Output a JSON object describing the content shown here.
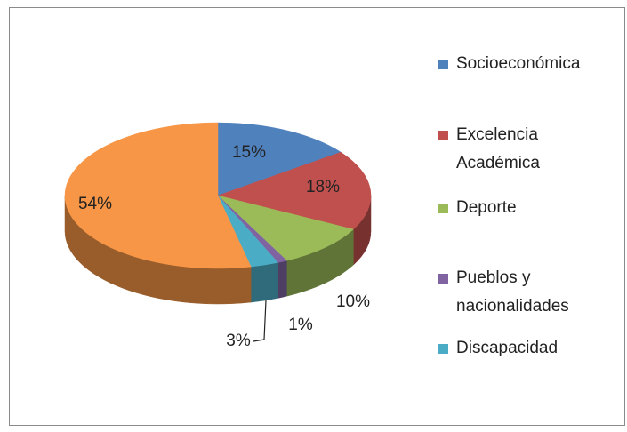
{
  "chart_data": {
    "type": "pie",
    "categories": [
      "Socioeconómica",
      "Excelencia Académica",
      "Deporte",
      "Pueblos y nacionalidades",
      "Discapacidad",
      null
    ],
    "values": [
      15,
      18,
      10,
      1,
      3,
      54
    ],
    "value_labels": [
      "15%",
      "18%",
      "10%",
      "1%",
      "3%",
      "54%"
    ],
    "colors": [
      "#4f81bd",
      "#c0504d",
      "#9bbb59",
      "#8064a2",
      "#4bacc6",
      "#f79646"
    ]
  }
}
